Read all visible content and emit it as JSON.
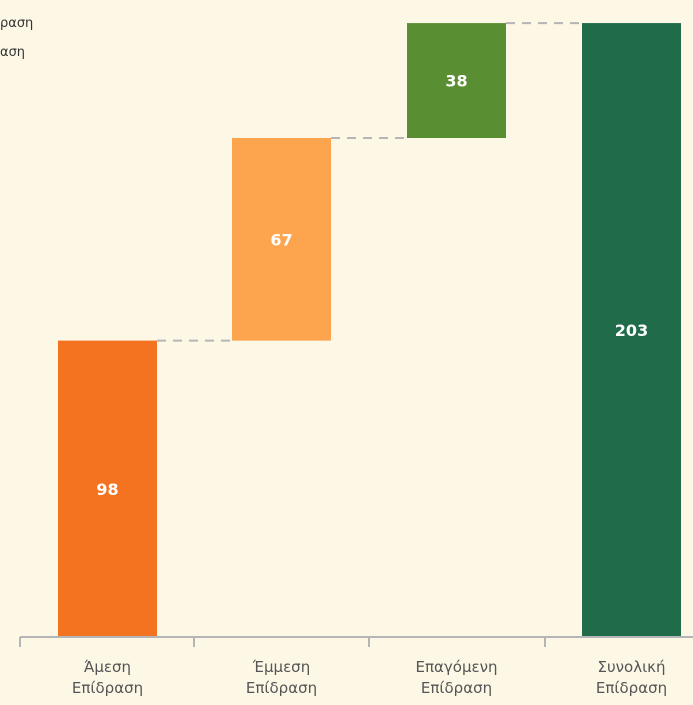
{
  "chart_data": {
    "type": "waterfall",
    "categories": [
      [
        "Άμεση",
        "Επίδραση"
      ],
      [
        "Έμμεση",
        "Επίδραση"
      ],
      [
        "Επαγόμενη",
        "Επίδραση"
      ],
      [
        "Συνολική",
        "Επίδραση"
      ]
    ],
    "values": [
      98,
      67,
      38,
      203
    ],
    "bases": [
      0,
      98,
      165,
      0
    ],
    "data_labels": [
      "98",
      "67",
      "38",
      "203"
    ],
    "colors": [
      "#f47320",
      "#fda54e",
      "#5a8e32",
      "#1f6b4a"
    ],
    "ylim": [
      0,
      206
    ],
    "connectors": true,
    "legend_fragments": [
      "ραση",
      "αση"
    ]
  }
}
